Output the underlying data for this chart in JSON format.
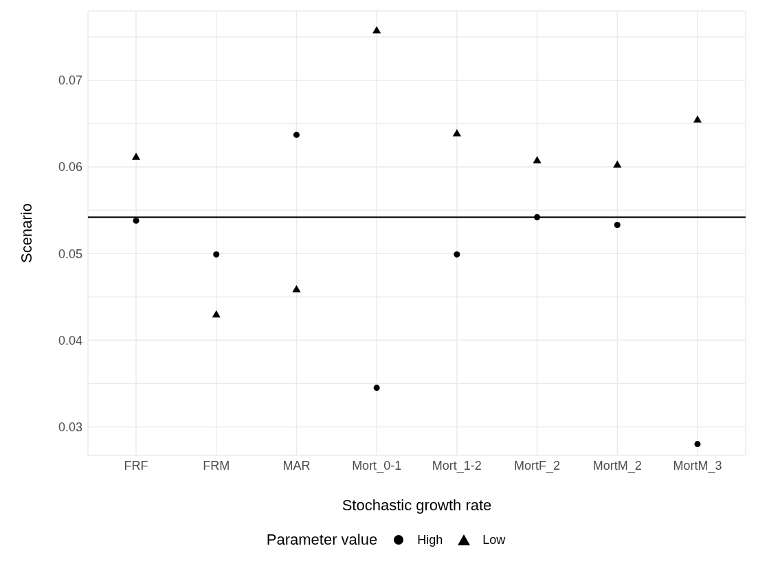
{
  "chart_data": {
    "type": "scatter",
    "xlabel": "Stochastic growth rate",
    "ylabel": "Scenario",
    "legend_title": "Parameter value",
    "categories": [
      "FRF",
      "FRM",
      "MAR",
      "Mort_0-1",
      "Mort_1-2",
      "MortF_2",
      "MortM_2",
      "MortM_3"
    ],
    "series": [
      {
        "name": "High",
        "color": "#000000",
        "marker": "circle",
        "values": [
          0.0538,
          0.0499,
          0.0637,
          0.0345,
          0.0499,
          0.0542,
          0.0533,
          0.028
        ]
      },
      {
        "name": "Low",
        "color": "#000000",
        "marker": "triangle",
        "values": [
          0.0611,
          0.0429,
          0.0458,
          0.0757,
          0.0638,
          0.0607,
          0.0602,
          0.0654
        ]
      }
    ],
    "ylim": [
      0.0267,
      0.078
    ],
    "yticks": [
      {
        "value": 0.03,
        "label": "0.03"
      },
      {
        "value": 0.035,
        "label": null
      },
      {
        "value": 0.04,
        "label": "0.04"
      },
      {
        "value": 0.045,
        "label": null
      },
      {
        "value": 0.05,
        "label": "0.05"
      },
      {
        "value": 0.055,
        "label": null
      },
      {
        "value": 0.06,
        "label": "0.06"
      },
      {
        "value": 0.065,
        "label": null
      },
      {
        "value": 0.07,
        "label": "0.07"
      },
      {
        "value": 0.075,
        "label": null
      }
    ],
    "ref_lines": [
      {
        "axis": "y",
        "value": 0.0542,
        "color": "#000000"
      }
    ],
    "grid": true,
    "legend": "bottom"
  }
}
